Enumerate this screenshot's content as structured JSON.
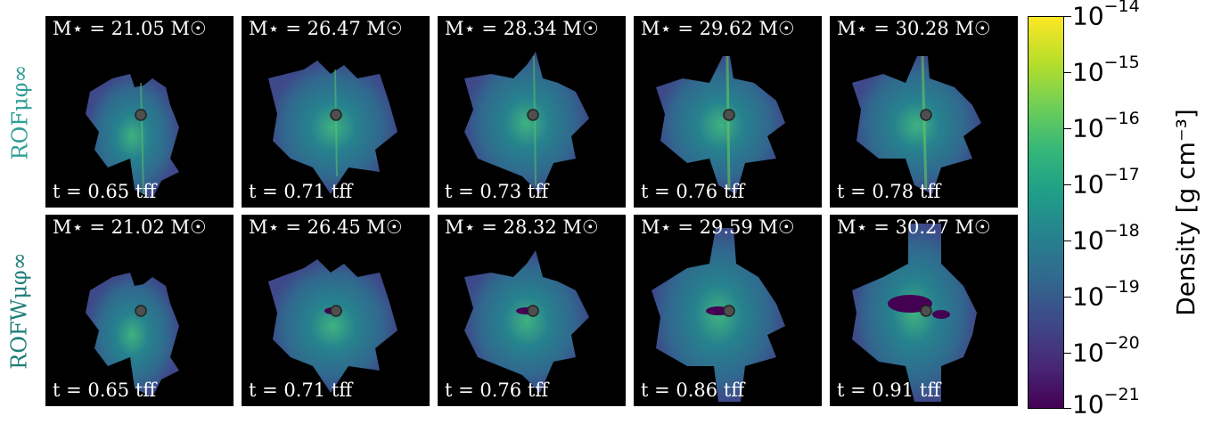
{
  "rows": [
    {
      "label": "ROFμφ∞",
      "panels": [
        {
          "mass": "M⋆ = 21.05 M☉",
          "time": "t = 0.65 tff"
        },
        {
          "mass": "M⋆ = 26.47 M☉",
          "time": "t = 0.71 tff"
        },
        {
          "mass": "M⋆ = 28.34 M☉",
          "time": "t = 0.73 tff"
        },
        {
          "mass": "M⋆ = 29.62 M☉",
          "time": "t = 0.76 tff"
        },
        {
          "mass": "M⋆ = 30.28 M☉",
          "time": "t = 0.78 tff"
        }
      ]
    },
    {
      "label": "ROFWμφ∞",
      "panels": [
        {
          "mass": "M⋆ = 21.02 M☉",
          "time": "t = 0.65 tff"
        },
        {
          "mass": "M⋆ = 26.45 M☉",
          "time": "t = 0.71 tff"
        },
        {
          "mass": "M⋆ = 28.32 M☉",
          "time": "t = 0.76 tff"
        },
        {
          "mass": "M⋆ = 29.59 M☉",
          "time": "t = 0.86 tff"
        },
        {
          "mass": "M⋆ = 30.27 M☉",
          "time": "t = 0.91 tff"
        }
      ]
    }
  ],
  "colorbar": {
    "label": "Density [g cm⁻³]",
    "colormap": "viridis",
    "ticks": [
      {
        "base": "10",
        "exp": "−14"
      },
      {
        "base": "10",
        "exp": "−15"
      },
      {
        "base": "10",
        "exp": "−16"
      },
      {
        "base": "10",
        "exp": "−17"
      },
      {
        "base": "10",
        "exp": "−18"
      },
      {
        "base": "10",
        "exp": "−19"
      },
      {
        "base": "10",
        "exp": "−20"
      },
      {
        "base": "10",
        "exp": "−21"
      }
    ]
  },
  "colors": {
    "panel_bg": "#000000",
    "row_label": "#2f9e96",
    "sink_marker": "#808080"
  }
}
